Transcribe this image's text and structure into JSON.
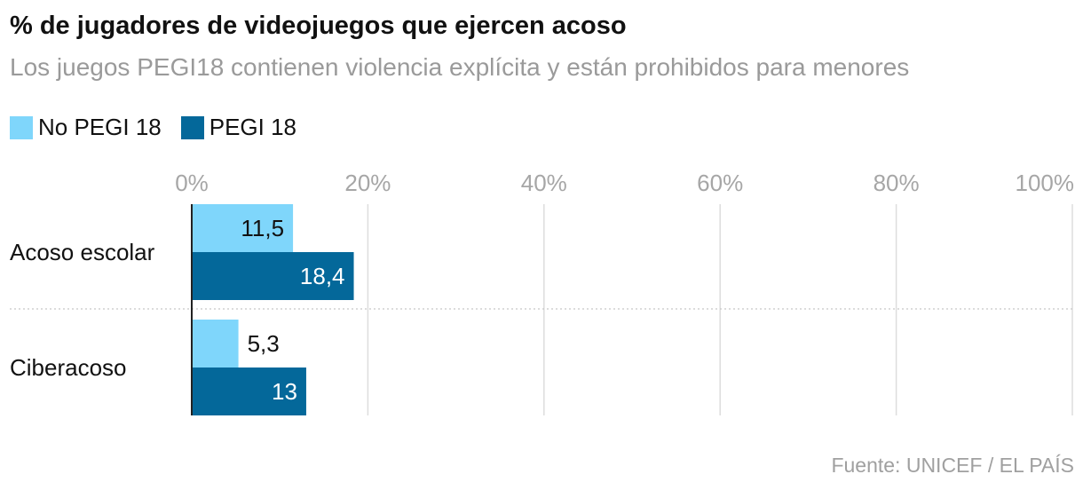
{
  "title": "% de jugadores de videojuegos que ejercen acoso",
  "subtitle": "Los juegos PEGI18 contienen violencia explícita y están prohibidos para menores",
  "legend": [
    {
      "label": "No PEGI 18",
      "color": "#7fd6fb"
    },
    {
      "label": "PEGI 18",
      "color": "#04689a"
    }
  ],
  "source": "Fuente: UNICEF / EL PAÍS",
  "chart_data": {
    "type": "bar",
    "orientation": "horizontal",
    "categories": [
      "Acoso escolar",
      "Ciberacoso"
    ],
    "series": [
      {
        "name": "No PEGI 18",
        "values": [
          11.5,
          5.3
        ],
        "labels": [
          "11,5",
          "5,3"
        ],
        "color": "#7fd6fb"
      },
      {
        "name": "PEGI 18",
        "values": [
          18.4,
          13
        ],
        "labels": [
          "18,4",
          "13"
        ],
        "color": "#04689a"
      }
    ],
    "xlim": [
      0,
      100
    ],
    "ticks": [
      0,
      20,
      40,
      60,
      80,
      100
    ],
    "tick_labels": [
      "0%",
      "20%",
      "40%",
      "60%",
      "80%",
      "100%"
    ],
    "grid": true,
    "legend_position": "top-left"
  }
}
